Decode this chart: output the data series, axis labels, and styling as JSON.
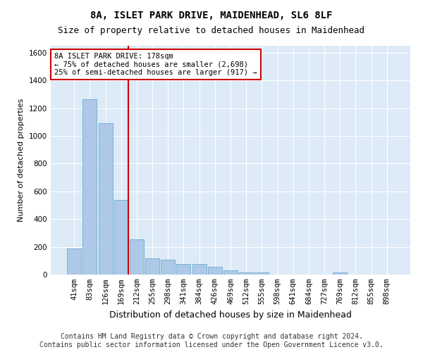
{
  "title": "8A, ISLET PARK DRIVE, MAIDENHEAD, SL6 8LF",
  "subtitle": "Size of property relative to detached houses in Maidenhead",
  "xlabel": "Distribution of detached houses by size in Maidenhead",
  "ylabel": "Number of detached properties",
  "categories": [
    "41sqm",
    "83sqm",
    "126sqm",
    "169sqm",
    "212sqm",
    "255sqm",
    "298sqm",
    "341sqm",
    "384sqm",
    "426sqm",
    "469sqm",
    "512sqm",
    "555sqm",
    "598sqm",
    "641sqm",
    "684sqm",
    "727sqm",
    "769sqm",
    "812sqm",
    "855sqm",
    "898sqm"
  ],
  "values": [
    190,
    1265,
    1090,
    540,
    255,
    115,
    105,
    75,
    75,
    55,
    30,
    15,
    15,
    0,
    0,
    0,
    0,
    15,
    0,
    0,
    0
  ],
  "bar_color": "#aec9e8",
  "bar_edge_color": "#6aaad4",
  "vline_x": 3.45,
  "vline_color": "#cc0000",
  "annotation_text": "8A ISLET PARK DRIVE: 178sqm\n← 75% of detached houses are smaller (2,698)\n25% of semi-detached houses are larger (917) →",
  "annotation_box_color": "#ffffff",
  "annotation_box_edge": "#cc0000",
  "ylim": [
    0,
    1650
  ],
  "yticks": [
    0,
    200,
    400,
    600,
    800,
    1000,
    1200,
    1400,
    1600
  ],
  "bg_color": "#ddeaf7",
  "footer_line1": "Contains HM Land Registry data © Crown copyright and database right 2024.",
  "footer_line2": "Contains public sector information licensed under the Open Government Licence v3.0.",
  "title_fontsize": 10,
  "subtitle_fontsize": 9,
  "annotation_fontsize": 7.5,
  "ylabel_fontsize": 8,
  "xlabel_fontsize": 9,
  "footer_fontsize": 7,
  "tick_fontsize": 7.5
}
